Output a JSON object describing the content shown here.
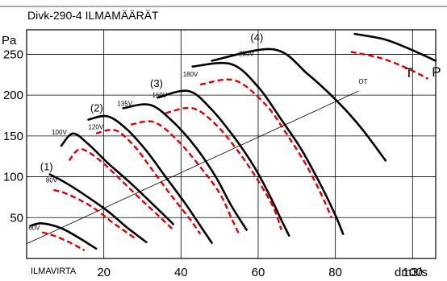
{
  "chart_data": {
    "type": "line",
    "title": "Divk-290-4 ILMAMÄÄRÄT",
    "ylabel": "Pa",
    "xlabel": "dm3/s",
    "x_axis_name": "ILMAVIRTA",
    "xlim": [
      0,
      106
    ],
    "ylim": [
      0,
      280
    ],
    "x_ticks": [
      20,
      40,
      60,
      80,
      100
    ],
    "y_ticks": [
      50,
      100,
      150,
      200,
      250
    ],
    "grid": true,
    "legend": [
      {
        "name": "P",
        "style": "solid",
        "color": "#000000"
      },
      {
        "name": "T",
        "style": "dashed",
        "color": "#e00000"
      }
    ],
    "series": [
      {
        "name": "60V",
        "type": "P",
        "points": [
          [
            1,
            40
          ],
          [
            4,
            43
          ],
          [
            9,
            37
          ],
          [
            14,
            24
          ],
          [
            18,
            12
          ]
        ]
      },
      {
        "name": "80V",
        "type": "P",
        "points": [
          [
            6,
            103
          ],
          [
            10,
            93
          ],
          [
            15,
            78
          ],
          [
            21,
            58
          ],
          [
            26,
            38
          ],
          [
            31,
            20
          ]
        ]
      },
      {
        "name": "100V",
        "type": "P",
        "points": [
          [
            9,
            138
          ],
          [
            12,
            153
          ],
          [
            16,
            140
          ],
          [
            21,
            117
          ],
          [
            27,
            92
          ],
          [
            33,
            65
          ],
          [
            38,
            42
          ]
        ]
      },
      {
        "name": "120V",
        "type": "P",
        "points": [
          [
            16,
            170
          ],
          [
            21,
            174
          ],
          [
            26,
            158
          ],
          [
            31,
            132
          ],
          [
            36,
            100
          ],
          [
            41,
            68
          ],
          [
            45,
            40
          ],
          [
            48,
            19
          ]
        ]
      },
      {
        "name": "135V",
        "type": "P",
        "points": [
          [
            25,
            184
          ],
          [
            32,
            188
          ],
          [
            38,
            167
          ],
          [
            44,
            135
          ],
          [
            49,
            100
          ],
          [
            53,
            65
          ],
          [
            57,
            35
          ]
        ]
      },
      {
        "name": "160V",
        "type": "P",
        "points": [
          [
            34,
            197
          ],
          [
            42,
            205
          ],
          [
            48,
            182
          ],
          [
            54,
            147
          ],
          [
            59,
            112
          ],
          [
            63,
            77
          ],
          [
            66,
            47
          ],
          [
            68,
            28
          ]
        ]
      },
      {
        "name": "180V",
        "type": "P",
        "points": [
          [
            43,
            235
          ],
          [
            53,
            238
          ],
          [
            60,
            210
          ],
          [
            66,
            170
          ],
          [
            71,
            135
          ],
          [
            76,
            92
          ],
          [
            80,
            53
          ],
          [
            82,
            30
          ]
        ]
      },
      {
        "name": "230V",
        "type": "P",
        "points": [
          [
            48,
            242
          ],
          [
            64,
            256
          ],
          [
            73,
            225
          ],
          [
            81,
            190
          ],
          [
            87,
            158
          ],
          [
            93,
            120
          ]
        ]
      },
      {
        "name": "T-60V",
        "type": "T",
        "points": [
          [
            4,
            32
          ],
          [
            7,
            28
          ],
          [
            11,
            20
          ],
          [
            15,
            10
          ]
        ]
      },
      {
        "name": "T-80V",
        "type": "T",
        "points": [
          [
            7,
            84
          ],
          [
            11,
            78
          ],
          [
            17,
            63
          ],
          [
            22,
            45
          ],
          [
            28,
            25
          ]
        ]
      },
      {
        "name": "T-100V",
        "type": "T",
        "points": [
          [
            11,
            120
          ],
          [
            14,
            134
          ],
          [
            19,
            120
          ],
          [
            24,
            98
          ],
          [
            29,
            75
          ],
          [
            34,
            53
          ],
          [
            38,
            35
          ]
        ]
      },
      {
        "name": "T-120V",
        "type": "T",
        "points": [
          [
            18,
            153
          ],
          [
            23,
            157
          ],
          [
            28,
            137
          ],
          [
            32,
            112
          ],
          [
            37,
            80
          ],
          [
            42,
            50
          ],
          [
            45,
            30
          ]
        ]
      },
      {
        "name": "T-135V",
        "type": "T",
        "points": [
          [
            27,
            164
          ],
          [
            33,
            167
          ],
          [
            39,
            145
          ],
          [
            45,
            112
          ],
          [
            50,
            80
          ],
          [
            53,
            50
          ],
          [
            55,
            30
          ]
        ]
      },
      {
        "name": "T-160V",
        "type": "T",
        "points": [
          [
            36,
            178
          ],
          [
            43,
            184
          ],
          [
            49,
            164
          ],
          [
            55,
            130
          ],
          [
            60,
            95
          ],
          [
            64,
            62
          ],
          [
            66,
            35
          ]
        ]
      },
      {
        "name": "T-180V",
        "type": "T",
        "points": [
          [
            45,
            213
          ],
          [
            54,
            218
          ],
          [
            62,
            188
          ],
          [
            67,
            155
          ],
          [
            72,
            118
          ],
          [
            76,
            82
          ],
          [
            79,
            50
          ]
        ]
      },
      {
        "name": "legend-P",
        "type": "P",
        "points": [
          [
            85,
            275
          ],
          [
            93,
            268
          ],
          [
            100,
            255
          ],
          [
            106,
            242
          ]
        ]
      },
      {
        "name": "legend-T",
        "type": "T",
        "points": [
          [
            84,
            253
          ],
          [
            92,
            245
          ],
          [
            99,
            232
          ],
          [
            104,
            220
          ]
        ]
      },
      {
        "name": "OT",
        "type": "ref",
        "points": [
          [
            0,
            18
          ],
          [
            86,
            205
          ]
        ]
      }
    ],
    "annotations": [
      {
        "text": "60V",
        "x": 0.5,
        "y": 35
      },
      {
        "text": "(1)",
        "x": 3.5,
        "y": 108
      },
      {
        "text": "80V",
        "x": 5,
        "y": 93
      },
      {
        "text": "100V",
        "x": 6.5,
        "y": 152
      },
      {
        "text": "(2)",
        "x": 16.5,
        "y": 180
      },
      {
        "text": "120V",
        "x": 16,
        "y": 158
      },
      {
        "text": "135V",
        "x": 23.5,
        "y": 187
      },
      {
        "text": "(3)",
        "x": 32,
        "y": 210
      },
      {
        "text": "160V",
        "x": 32.5,
        "y": 197
      },
      {
        "text": "180V",
        "x": 40.5,
        "y": 223
      },
      {
        "text": "(4)",
        "x": 58,
        "y": 266
      },
      {
        "text": "230V",
        "x": 55,
        "y": 248
      },
      {
        "text": "OT",
        "x": 86,
        "y": 214
      }
    ],
    "legend_labels": [
      {
        "text": "T",
        "x": 98,
        "y": 222
      },
      {
        "text": "P",
        "x": 105,
        "y": 223
      }
    ]
  },
  "colors": {
    "P": "#000000",
    "T": "#e00000",
    "ref": "#000000"
  }
}
